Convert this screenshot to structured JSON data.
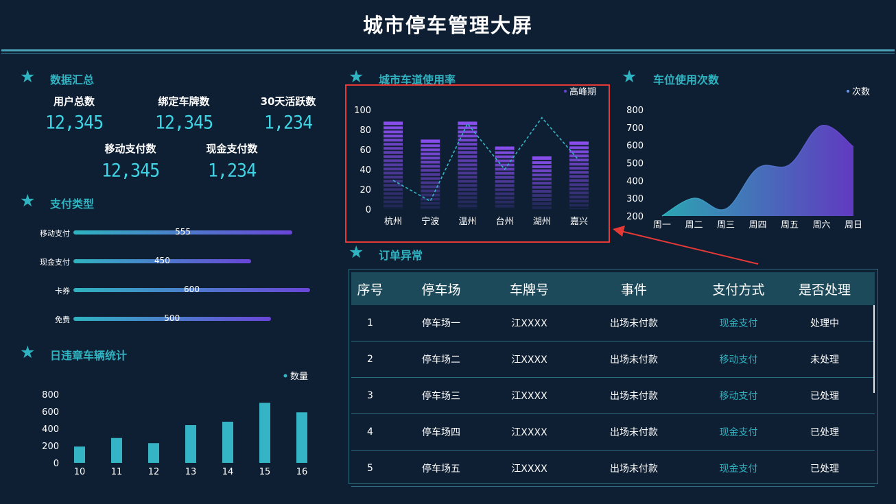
{
  "page_title": "城市停车管理大屏",
  "sections": {
    "summary": "数据汇总",
    "payment_types": "支付类型",
    "daily_violations": "日违章车辆统计",
    "lane_usage": "城市车道使用率",
    "space_usage": "车位使用次数",
    "order_anomaly": "订单异常"
  },
  "stats": [
    {
      "label": "用户总数",
      "value": "12,345"
    },
    {
      "label": "绑定车牌数",
      "value": "12,345"
    },
    {
      "label": "30天活跃数",
      "value": "1,234"
    },
    {
      "label": "移动支付数",
      "value": "12,345"
    },
    {
      "label": "现金支付数",
      "value": "1,234"
    }
  ],
  "payment_types": [
    {
      "label": "移动支付",
      "value": 555
    },
    {
      "label": "现金支付",
      "value": 450
    },
    {
      "label": "卡券",
      "value": 600
    },
    {
      "label": "免费",
      "value": 500
    }
  ],
  "colors": {
    "accent": "#2fb3c0",
    "purple": "#6a45d8",
    "background": "#0f1f33",
    "highlight_border": "#e53935",
    "table_header": "#1d4a5a"
  },
  "chart_data": [
    {
      "type": "bar",
      "id": "daily_violations",
      "categories": [
        "10",
        "11",
        "12",
        "13",
        "14",
        "15",
        "16"
      ],
      "series": [
        {
          "name": "数量",
          "values": [
            190,
            290,
            230,
            440,
            480,
            700,
            590
          ]
        }
      ],
      "ylim": [
        0,
        800
      ],
      "yticks": [
        "0",
        "200",
        "400",
        "600",
        "800"
      ],
      "legend": "top-right"
    },
    {
      "type": "bar",
      "id": "lane_usage",
      "categories": [
        "杭州",
        "宁波",
        "温州",
        "台州",
        "湖州",
        "嘉兴"
      ],
      "series": [
        {
          "name": "高峰期",
          "values": [
            88,
            70,
            88,
            63,
            53,
            68
          ],
          "style": "segmented-bar"
        },
        {
          "values": [
            29,
            8,
            86,
            40,
            92,
            49
          ],
          "style": "dashed-line"
        }
      ],
      "ylim": [
        0,
        100
      ],
      "yticks": [
        "0",
        "20",
        "40",
        "60",
        "80",
        "100"
      ],
      "legend": "top-right"
    },
    {
      "type": "area",
      "id": "space_usage",
      "categories": [
        "周一",
        "周二",
        "周三",
        "周四",
        "周五",
        "周六",
        "周日"
      ],
      "series": [
        {
          "name": "次数",
          "values": [
            200,
            300,
            240,
            470,
            490,
            710,
            590
          ]
        }
      ],
      "ylim": [
        200,
        800
      ],
      "yticks": [
        "200",
        "300",
        "400",
        "500",
        "600",
        "700",
        "800"
      ],
      "legend": "top-right"
    }
  ],
  "orders_table": {
    "headers": [
      "序号",
      "停车场",
      "车牌号",
      "事件",
      "支付方式",
      "是否处理"
    ],
    "rows": [
      [
        "1",
        "停车场一",
        "江XXXX",
        "出场未付款",
        "现金支付",
        "处理中"
      ],
      [
        "2",
        "停车场二",
        "江XXXX",
        "出场未付款",
        "移动支付",
        "未处理"
      ],
      [
        "3",
        "停车场三",
        "江XXXX",
        "出场未付款",
        "移动支付",
        "已处理"
      ],
      [
        "4",
        "停车场四",
        "江XXXX",
        "出场未付款",
        "现金支付",
        "已处理"
      ],
      [
        "5",
        "停车场五",
        "江XXXX",
        "出场未付款",
        "现金支付",
        "已处理"
      ]
    ]
  }
}
